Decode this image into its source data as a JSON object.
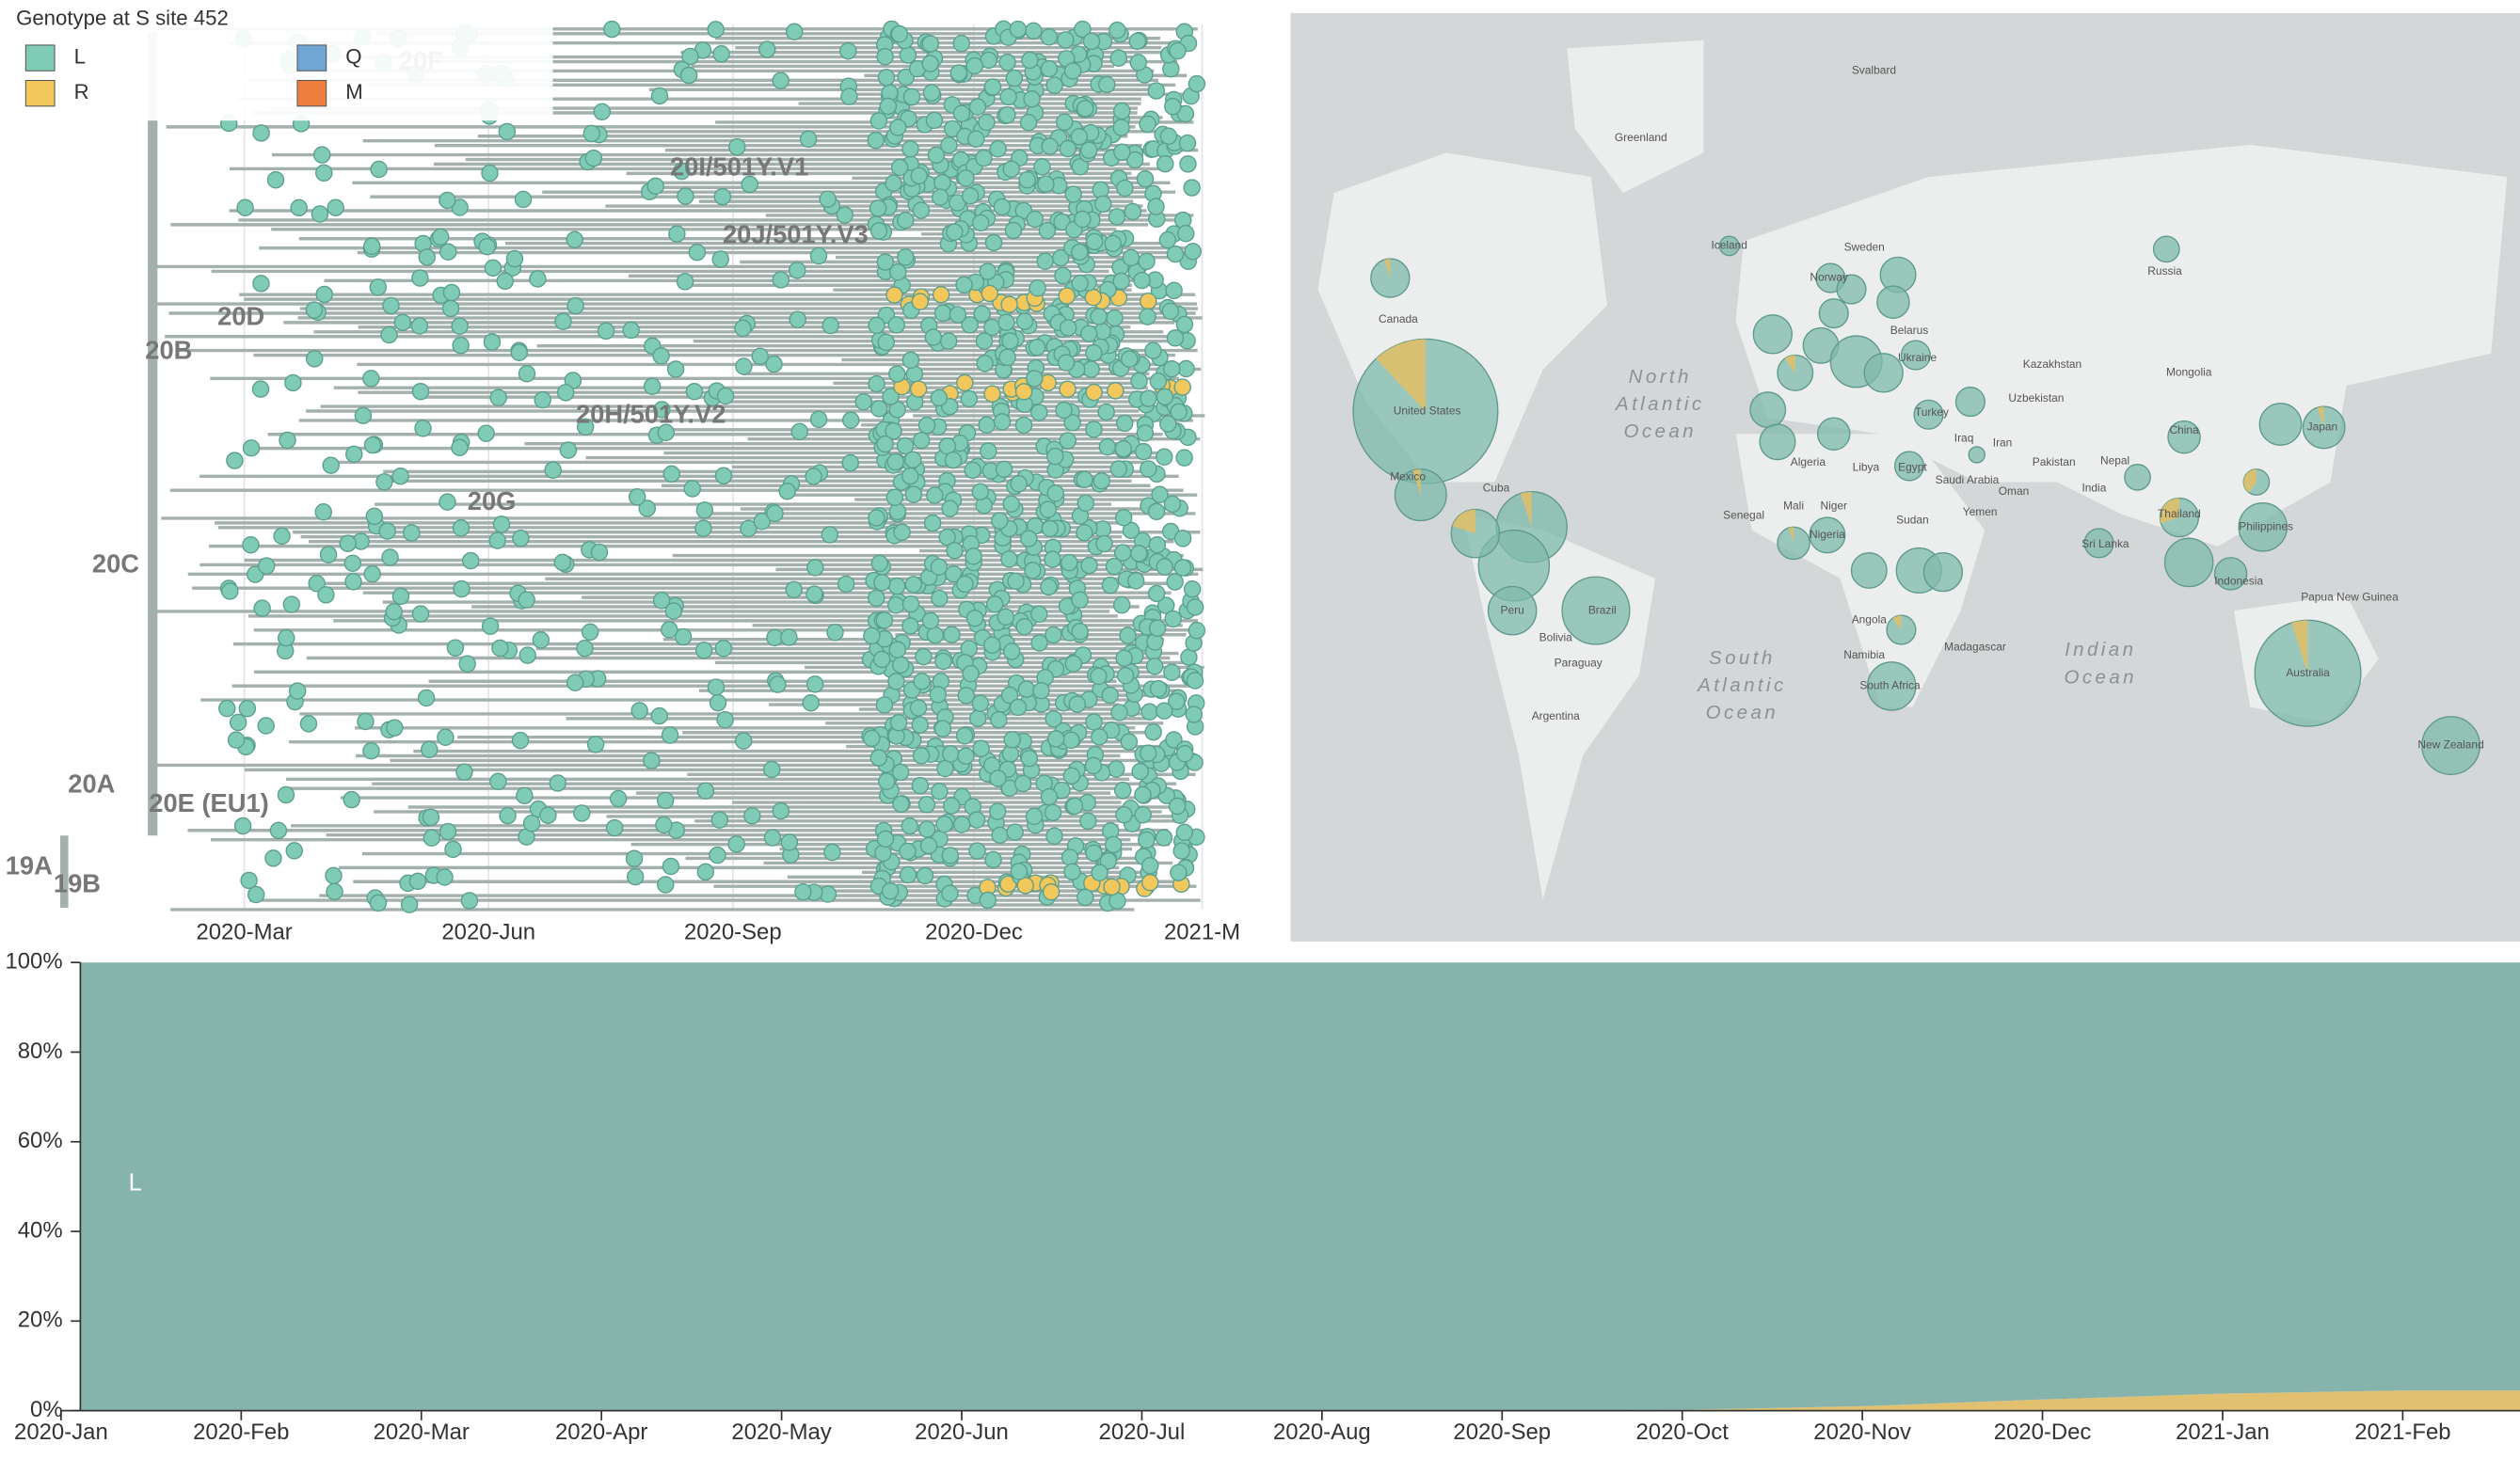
{
  "legend": {
    "title": "Genotype at S site 452",
    "items": [
      {
        "label": "L",
        "color": "#7fcbb6"
      },
      {
        "label": "R",
        "color": "#f2c75c"
      },
      {
        "label": "Q",
        "color": "#6fa6d3"
      },
      {
        "label": "M",
        "color": "#ef7f3f"
      }
    ]
  },
  "tree": {
    "clade_labels": [
      "19A",
      "19B",
      "20A",
      "20B",
      "20C",
      "20D",
      "20E (EU1)",
      "20F",
      "20G",
      "20H/501Y.V2",
      "20I/501Y.V1",
      "20J/501Y.V3"
    ],
    "xticks": [
      "2020-Mar",
      "2020-Jun",
      "2020-Sep",
      "2020-Dec",
      "2021-M"
    ]
  },
  "map": {
    "labels": [
      "Svalbard",
      "Greenland",
      "Iceland",
      "Sweden",
      "Russia",
      "Norway",
      "Belarus",
      "Canada",
      "Kazakhstan",
      "Mongolia",
      "Ukraine",
      "United States",
      "Uzbekistan",
      "Turkey",
      "China",
      "Japan",
      "Iraq",
      "Iran",
      "Algeria",
      "Libya",
      "Egypt",
      "Pakistan",
      "Nepal",
      "Saudi Arabia",
      "Oman",
      "India",
      "Cuba",
      "Mexico",
      "Mali",
      "Niger",
      "Senegal",
      "Yemen",
      "Sudan",
      "Thailand",
      "Philippines",
      "Nigeria",
      "Sri Lanka",
      "Peru",
      "Brazil",
      "Bolivia",
      "Papua New Guinea",
      "Indonesia",
      "Angola",
      "Madagascar",
      "Namibia",
      "Paraguay",
      "Australia",
      "South Africa",
      "Argentina",
      "New Zealand"
    ],
    "ocean_labels": [
      [
        "North",
        "Atlantic",
        "Ocean"
      ],
      [
        "South",
        "Atlantic",
        "Ocean"
      ],
      [
        "Indian",
        "Ocean"
      ]
    ]
  },
  "frequencies": {
    "ylim": [
      0,
      100
    ],
    "yticks": [
      {
        "value": 0,
        "label": "0%"
      },
      {
        "value": 20,
        "label": "20%"
      },
      {
        "value": 40,
        "label": "40%"
      },
      {
        "value": 60,
        "label": "60%"
      },
      {
        "value": 80,
        "label": "80%"
      },
      {
        "value": 100,
        "label": "100%"
      }
    ],
    "categories": [
      "2020-Jan",
      "2020-Feb",
      "2020-Mar",
      "2020-Apr",
      "2020-May",
      "2020-Jun",
      "2020-Jul",
      "2020-Aug",
      "2020-Sep",
      "2020-Oct",
      "2020-Nov",
      "2020-Dec",
      "2021-Jan",
      "2021-Feb"
    ],
    "series": [
      {
        "name": "R",
        "color": "#e1c06f",
        "values": [
          0,
          0,
          0,
          0,
          0,
          0,
          0,
          0,
          0,
          0.2,
          1,
          2.5,
          3.8,
          4.5
        ]
      },
      {
        "name": "L",
        "color": "#86b3ac",
        "values": [
          100,
          100,
          100,
          100,
          100,
          100,
          100,
          100,
          100,
          99.8,
          99,
          97.5,
          96.2,
          95.5
        ]
      }
    ]
  }
}
